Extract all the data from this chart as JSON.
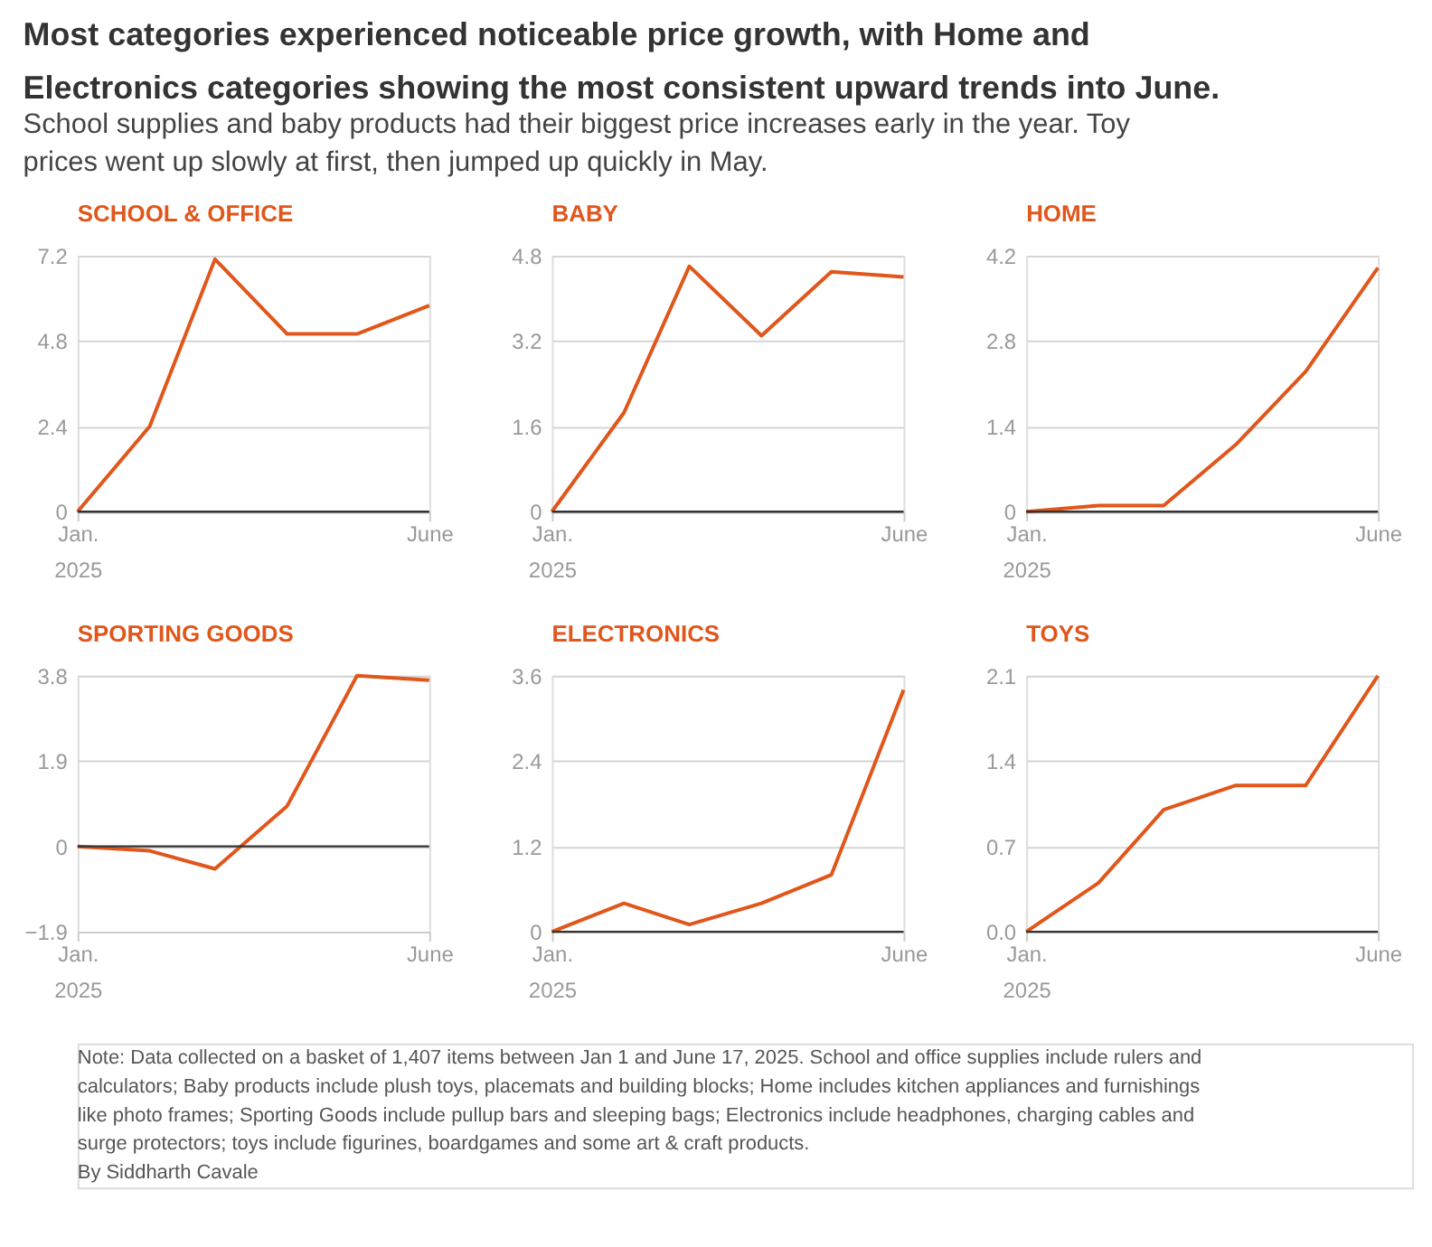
{
  "chart_data": [
    {
      "type": "line",
      "title": "SCHOOL & OFFICE",
      "annotations": [
        "Most categories experienced noticeable price growth, with Home and Electronics categories showing the most consistent upward trends into June.",
        "School supplies and baby products had their biggest price increases early in the year. Toy prices went up slowly at first, then jumped up quickly in May."
      ],
      "x": [
        "2025-01",
        "2025-02",
        "2025-03",
        "2025-04",
        "2025-05",
        "2025-06"
      ],
      "values": [
        0,
        2.4,
        7.1,
        5.0,
        5.0,
        5.8
      ],
      "color": "#e0561b",
      "xlim": [
        "2025-01",
        "2025-06"
      ],
      "xticks": [
        {
          "value": "2025-01",
          "label": "Jan. 2025"
        },
        {
          "value": "2025-06",
          "label": "June"
        }
      ],
      "ylim": [
        0,
        7.2
      ],
      "yticks": [
        0,
        2.4,
        4.8,
        7.2
      ],
      "grid": "y",
      "ref_lines": [
        {
          "axis": "y",
          "value": 0,
          "color": "#333333"
        }
      ]
    },
    {
      "type": "line",
      "title": "BABY",
      "x": [
        "2025-01",
        "2025-02",
        "2025-03",
        "2025-04",
        "2025-05",
        "2025-06"
      ],
      "values": [
        0,
        1.86,
        4.6,
        3.3,
        4.5,
        4.4
      ],
      "color": "#e0561b",
      "xlim": [
        "2025-01",
        "2025-06"
      ],
      "xticks": [
        {
          "value": "2025-01",
          "label": "Jan. 2025"
        },
        {
          "value": "2025-06",
          "label": "June"
        }
      ],
      "ylim": [
        0,
        4.8
      ],
      "yticks": [
        0,
        1.6,
        3.2,
        4.8
      ],
      "grid": "y",
      "ref_lines": [
        {
          "axis": "y",
          "value": 0,
          "color": "#333333"
        }
      ]
    },
    {
      "type": "line",
      "title": "HOME",
      "x": [
        "2025-01",
        "2025-02",
        "2025-03",
        "2025-04",
        "2025-05",
        "2025-06"
      ],
      "values": [
        0,
        0.1,
        0.1,
        1.1,
        2.3,
        4.0
      ],
      "color": "#e0561b",
      "xlim": [
        "2025-01",
        "2025-06"
      ],
      "xticks": [
        {
          "value": "2025-01",
          "label": "Jan. 2025"
        },
        {
          "value": "2025-06",
          "label": "June"
        }
      ],
      "ylim": [
        0,
        4.2
      ],
      "yticks": [
        0,
        1.4,
        2.8,
        4.2
      ],
      "grid": "y",
      "ref_lines": [
        {
          "axis": "y",
          "value": 0,
          "color": "#333333"
        }
      ]
    },
    {
      "type": "line",
      "title": "SPORTING GOODS",
      "x": [
        "2025-01",
        "2025-02",
        "2025-03",
        "2025-04",
        "2025-05",
        "2025-06"
      ],
      "values": [
        0,
        -0.1,
        -0.5,
        0.9,
        3.8,
        3.7
      ],
      "color": "#e0561b",
      "xlim": [
        "2025-01",
        "2025-06"
      ],
      "xticks": [
        {
          "value": "2025-01",
          "label": "Jan. 2025"
        },
        {
          "value": "2025-06",
          "label": "June"
        }
      ],
      "ylim": [
        -1.9,
        3.8
      ],
      "yticks": [
        -1.9,
        0,
        1.9,
        3.8
      ],
      "grid": "y",
      "ref_lines": [
        {
          "axis": "y",
          "value": 0,
          "color": "#333333"
        }
      ]
    },
    {
      "type": "line",
      "title": "ELECTRONICS",
      "x": [
        "2025-01",
        "2025-02",
        "2025-03",
        "2025-04",
        "2025-05",
        "2025-06"
      ],
      "values": [
        0,
        0.4,
        0.1,
        0.4,
        0.8,
        3.4
      ],
      "color": "#e0561b",
      "xlim": [
        "2025-01",
        "2025-06"
      ],
      "xticks": [
        {
          "value": "2025-01",
          "label": "Jan. 2025"
        },
        {
          "value": "2025-06",
          "label": "June"
        }
      ],
      "ylim": [
        0,
        3.6
      ],
      "yticks": [
        0,
        1.2,
        2.4,
        3.6
      ],
      "grid": "y",
      "ref_lines": [
        {
          "axis": "y",
          "value": 0,
          "color": "#333333"
        }
      ]
    },
    {
      "type": "line",
      "title": "TOYS",
      "annotations": [
        "Note: Data collected on a basket of 1,407 items between Jan 1 and June 17, 2025. School and office supplies include rulers and calculators; Baby products include plush toys, placemats and building blocks; Home includes kitchen appliances and furnishings like photo frames; Sporting Goods include pullup bars and sleeping bags; Electronics include headphones, charging cables and surge protectors; toys include figurines, boardgames and some art & craft products.",
        "By Siddharth Cavale"
      ],
      "x": [
        "2025-01",
        "2025-02",
        "2025-03",
        "2025-04",
        "2025-05",
        "2025-06"
      ],
      "values": [
        0,
        0.4,
        1.0,
        1.2,
        1.2,
        2.1
      ],
      "color": "#e0561b",
      "xlim": [
        "2025-01",
        "2025-06"
      ],
      "xticks": [
        {
          "value": "2025-01",
          "label": "Jan. 2025"
        },
        {
          "value": "2025-06",
          "label": "June"
        }
      ],
      "ylim": [
        0,
        2.1
      ],
      "yticks": [
        {
          "value": 0,
          "label": "0.0"
        },
        0.7,
        1.4,
        2.1
      ],
      "grid": "y",
      "ref_lines": [
        {
          "axis": "y",
          "value": 0,
          "color": "#333333"
        }
      ]
    }
  ]
}
